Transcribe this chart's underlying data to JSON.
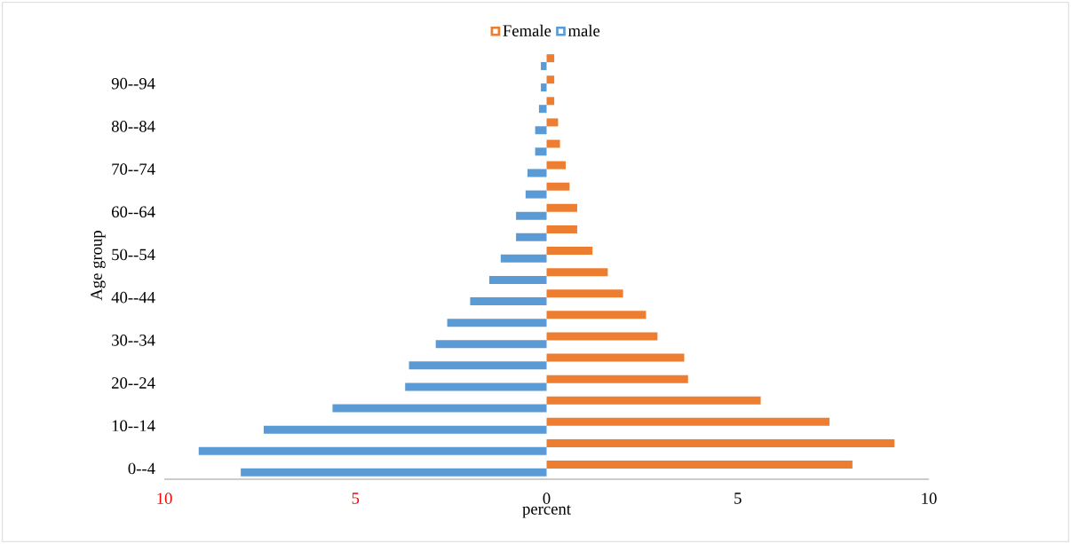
{
  "chart_data": {
    "type": "bar",
    "orientation": "horizontal",
    "xlabel": "percent",
    "ylabel": "Age group",
    "categories": [
      null,
      "90--94",
      null,
      "80--84",
      null,
      "70--74",
      null,
      "60--64",
      null,
      "50--54",
      null,
      "40--44",
      null,
      "30--34",
      null,
      "20--24",
      null,
      "10--14",
      null,
      "0--4"
    ],
    "series": [
      {
        "name": "Female",
        "color": "#ed7d31",
        "values": [
          0.2,
          0.2,
          0.2,
          0.3,
          0.35,
          0.5,
          0.6,
          0.8,
          0.8,
          1.2,
          1.6,
          2.0,
          2.6,
          2.9,
          3.6,
          3.7,
          5.6,
          7.4,
          9.1,
          8.0
        ]
      },
      {
        "name": "male",
        "color": "#5b9bd5",
        "values": [
          -0.15,
          -0.15,
          -0.2,
          -0.3,
          -0.3,
          -0.5,
          -0.55,
          -0.8,
          -0.8,
          -1.2,
          -1.5,
          -2.0,
          -2.6,
          -2.9,
          -3.6,
          -3.7,
          -5.6,
          -7.4,
          -9.1,
          -8.0
        ]
      }
    ],
    "xlim": [
      -10,
      10
    ],
    "xticks": [
      {
        "value": -10,
        "label": "10"
      },
      {
        "value": -5,
        "label": "5"
      },
      {
        "value": 0,
        "label": "0"
      },
      {
        "value": 5,
        "label": "5"
      },
      {
        "value": 10,
        "label": "10"
      }
    ],
    "legend": "top"
  }
}
